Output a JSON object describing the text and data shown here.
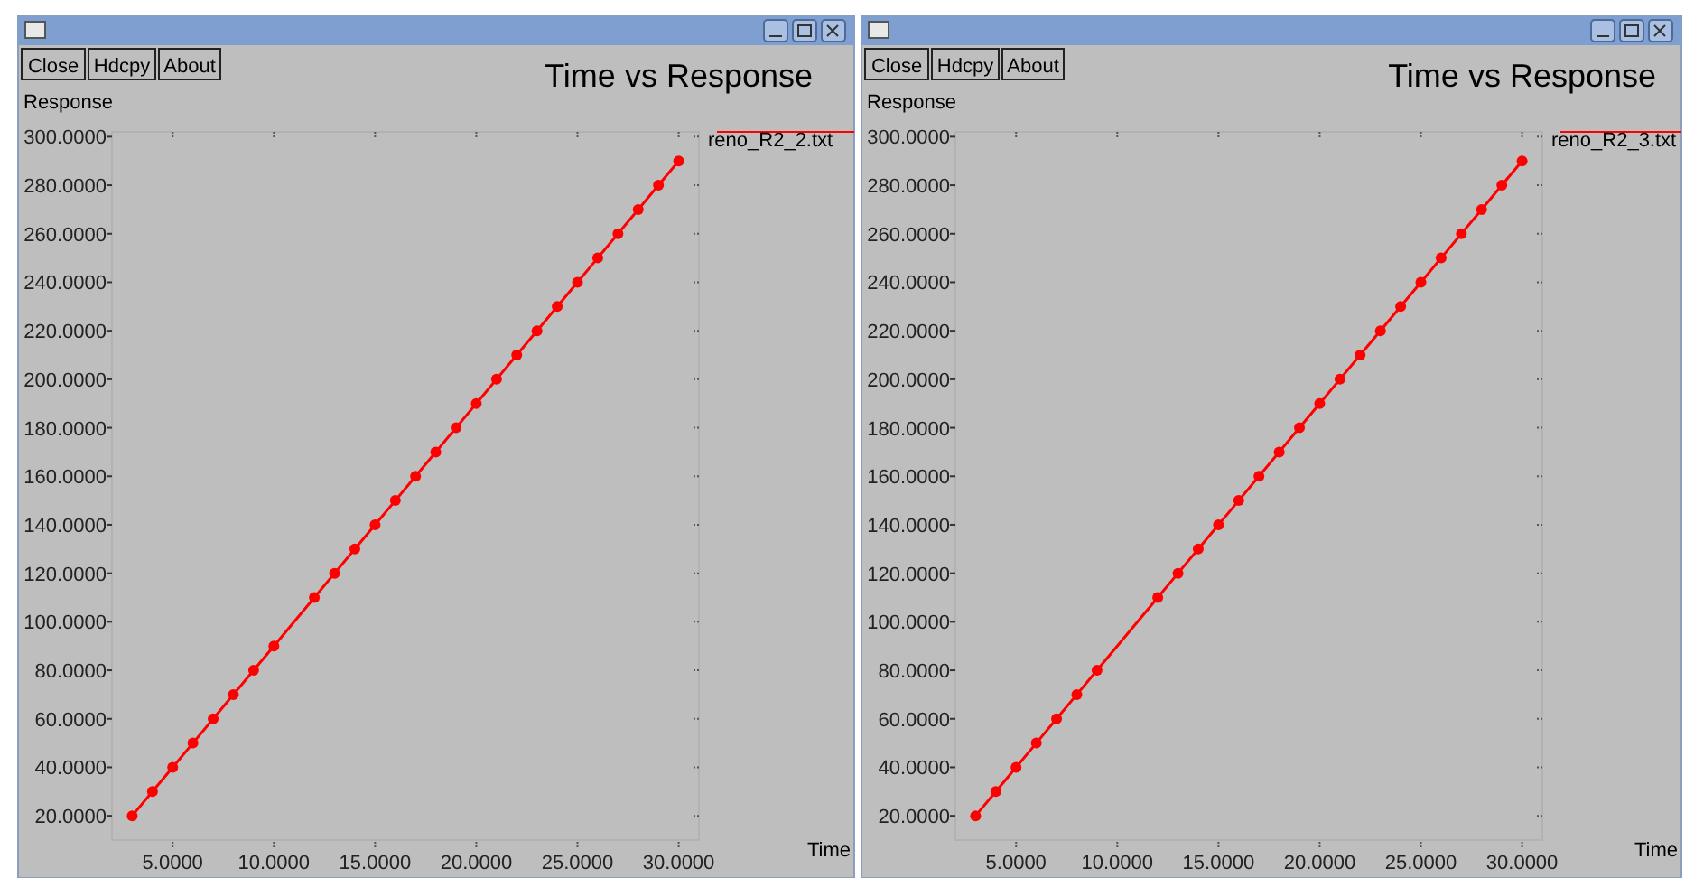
{
  "chart_data": [
    {
      "type": "line",
      "title": "Time vs Response",
      "xlabel": "Time",
      "ylabel": "Response",
      "annotations": [
        "Close",
        "Hdcpy",
        "About"
      ],
      "series": [
        {
          "name": "reno_R2_2.txt",
          "color": "#ff0000",
          "x": [
            3,
            4,
            5,
            6,
            7,
            8,
            9,
            10,
            12,
            13,
            14,
            15,
            16,
            17,
            18,
            19,
            20,
            21,
            22,
            23,
            24,
            25,
            26,
            27,
            28,
            29,
            30
          ],
          "values": [
            20,
            30,
            40,
            50,
            60,
            70,
            80,
            90,
            110,
            120,
            130,
            140,
            150,
            160,
            170,
            180,
            190,
            200,
            210,
            220,
            230,
            240,
            250,
            260,
            270,
            280,
            290
          ]
        }
      ],
      "xlim": [
        2,
        31
      ],
      "ylim": [
        10,
        302
      ],
      "xticks": [
        {
          "value": 5,
          "label": "5.0000"
        },
        {
          "value": 10,
          "label": "10.0000"
        },
        {
          "value": 15,
          "label": "15.0000"
        },
        {
          "value": 20,
          "label": "20.0000"
        },
        {
          "value": 25,
          "label": "25.0000"
        },
        {
          "value": 30,
          "label": "30.0000"
        }
      ],
      "yticks": [
        {
          "value": 20,
          "label": "20.0000"
        },
        {
          "value": 40,
          "label": "40.0000"
        },
        {
          "value": 60,
          "label": "60.0000"
        },
        {
          "value": 80,
          "label": "80.0000"
        },
        {
          "value": 100,
          "label": "100.0000"
        },
        {
          "value": 120,
          "label": "120.0000"
        },
        {
          "value": 140,
          "label": "140.0000"
        },
        {
          "value": 160,
          "label": "160.0000"
        },
        {
          "value": 180,
          "label": "180.0000"
        },
        {
          "value": 200,
          "label": "200.0000"
        },
        {
          "value": 220,
          "label": "220.0000"
        },
        {
          "value": 240,
          "label": "240.0000"
        },
        {
          "value": 260,
          "label": "260.0000"
        },
        {
          "value": 280,
          "label": "280.0000"
        },
        {
          "value": 300,
          "label": "300.0000"
        }
      ],
      "grid": false,
      "legend": "top right",
      "marker": "circle",
      "line_style": "solid"
    },
    {
      "type": "line",
      "title": "Time vs Response",
      "xlabel": "Time",
      "ylabel": "Response",
      "annotations": [
        "Close",
        "Hdcpy",
        "About"
      ],
      "series": [
        {
          "name": "reno_R2_3.txt",
          "color": "#ff0000",
          "x": [
            3,
            4,
            5,
            6,
            7,
            8,
            9,
            12,
            13,
            14,
            15,
            16,
            17,
            18,
            19,
            20,
            21,
            22,
            23,
            24,
            25,
            26,
            27,
            28,
            29,
            30
          ],
          "values": [
            20,
            30,
            40,
            50,
            60,
            70,
            80,
            110,
            120,
            130,
            140,
            150,
            160,
            170,
            180,
            190,
            200,
            210,
            220,
            230,
            240,
            250,
            260,
            270,
            280,
            290
          ]
        }
      ],
      "xlim": [
        2,
        31
      ],
      "ylim": [
        10,
        302
      ],
      "xticks": [
        {
          "value": 5,
          "label": "5.0000"
        },
        {
          "value": 10,
          "label": "10.0000"
        },
        {
          "value": 15,
          "label": "15.0000"
        },
        {
          "value": 20,
          "label": "20.0000"
        },
        {
          "value": 25,
          "label": "25.0000"
        },
        {
          "value": 30,
          "label": "30.0000"
        }
      ],
      "yticks": [
        {
          "value": 20,
          "label": "20.0000"
        },
        {
          "value": 40,
          "label": "40.0000"
        },
        {
          "value": 60,
          "label": "60.0000"
        },
        {
          "value": 80,
          "label": "80.0000"
        },
        {
          "value": 100,
          "label": "100.0000"
        },
        {
          "value": 120,
          "label": "120.0000"
        },
        {
          "value": 140,
          "label": "140.0000"
        },
        {
          "value": 160,
          "label": "160.0000"
        },
        {
          "value": 180,
          "label": "180.0000"
        },
        {
          "value": 200,
          "label": "200.0000"
        },
        {
          "value": 220,
          "label": "220.0000"
        },
        {
          "value": 240,
          "label": "240.0000"
        },
        {
          "value": 260,
          "label": "260.0000"
        },
        {
          "value": 280,
          "label": "280.0000"
        },
        {
          "value": 300,
          "label": "300.0000"
        }
      ],
      "grid": false,
      "legend": "top right",
      "marker": "circle",
      "line_style": "solid"
    }
  ]
}
